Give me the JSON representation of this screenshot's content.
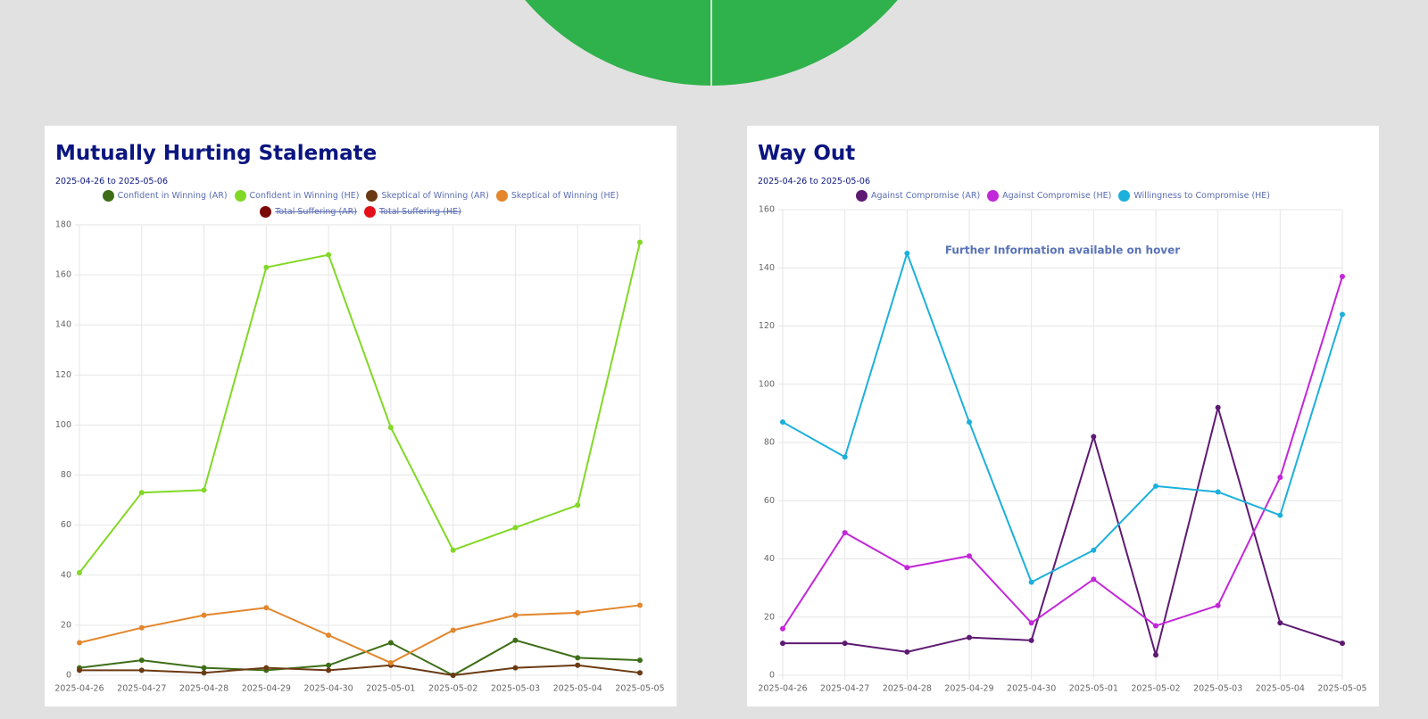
{
  "chart_data": [
    {
      "type": "line",
      "title": "Mutually Hurting Stalemate",
      "subtitle": "2025-04-26 to 2025-05-06",
      "categories": [
        "2025-04-26",
        "2025-04-27",
        "2025-04-28",
        "2025-04-29",
        "2025-04-30",
        "2025-05-01",
        "2025-05-02",
        "2025-05-03",
        "2025-05-04",
        "2025-05-05"
      ],
      "series": [
        {
          "name": "Confident in Winning (AR)",
          "color": "#3d6e17",
          "values": [
            3,
            6,
            3,
            2,
            4,
            13,
            0,
            14,
            7,
            6
          ]
        },
        {
          "name": "Confident in Winning (HE)",
          "color": "#82d826",
          "values": [
            41,
            73,
            74,
            163,
            168,
            99,
            50,
            59,
            68,
            173
          ]
        },
        {
          "name": "Skeptical of Winning (AR)",
          "color": "#6b3a12",
          "values": [
            2,
            2,
            1,
            3,
            2,
            4,
            0,
            3,
            4,
            1
          ]
        },
        {
          "name": "Skeptical of Winning (HE)",
          "color": "#e3862c",
          "values": [
            13,
            19,
            24,
            27,
            16,
            5,
            18,
            24,
            25,
            28
          ]
        },
        {
          "name": "Total Suffering (AR)",
          "color": "#7a0a0a",
          "hidden": true
        },
        {
          "name": "Total Suffering (HE)",
          "color": "#e3101a",
          "hidden": true
        }
      ],
      "ylim": [
        0,
        180
      ],
      "yticks": [
        0,
        20,
        40,
        60,
        80,
        100,
        120,
        140,
        160,
        180
      ],
      "grid": true
    },
    {
      "type": "line",
      "title": "Way Out",
      "subtitle": "2025-04-26 to 2025-05-06",
      "annotation": "Further Information available on hover",
      "categories": [
        "2025-04-26",
        "2025-04-27",
        "2025-04-28",
        "2025-04-29",
        "2025-04-30",
        "2025-05-01",
        "2025-05-02",
        "2025-05-03",
        "2025-05-04",
        "2025-05-05"
      ],
      "series": [
        {
          "name": "Against Compromise (AR)",
          "color": "#5e1a72",
          "values": [
            11,
            11,
            8,
            13,
            12,
            82,
            7,
            92,
            18,
            11
          ]
        },
        {
          "name": "Against Compromise (HE)",
          "color": "#c227d8",
          "values": [
            16,
            49,
            37,
            41,
            18,
            33,
            17,
            24,
            68,
            137
          ]
        },
        {
          "name": "Willingness to Compromise (HE)",
          "color": "#1cb0dc",
          "values": [
            87,
            75,
            145,
            87,
            32,
            43,
            65,
            63,
            55,
            124
          ]
        }
      ],
      "ylim": [
        0,
        160
      ],
      "yticks": [
        0,
        20,
        40,
        60,
        80,
        100,
        120,
        140,
        160
      ],
      "grid": true
    }
  ]
}
